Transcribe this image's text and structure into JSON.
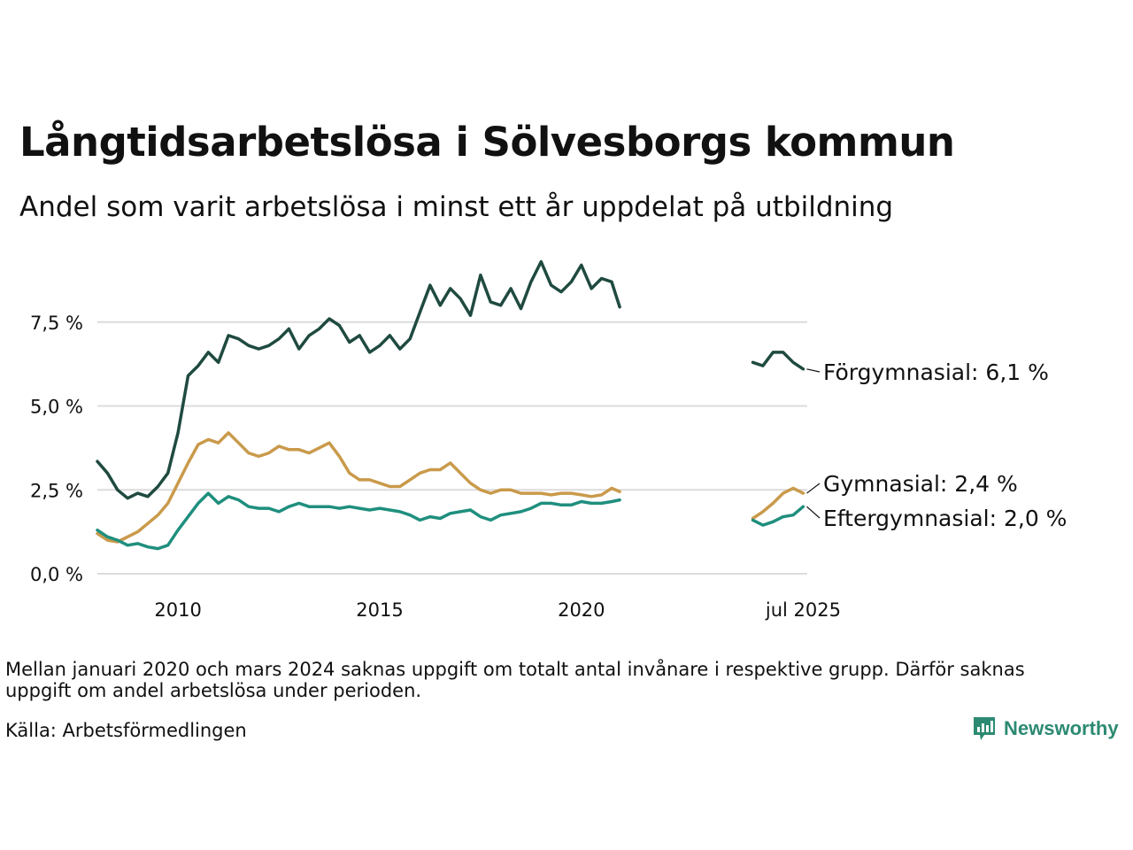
{
  "title": "Långtidsarbetslösa i Sölvesborgs kommun",
  "subtitle": "Andel som varit arbetslösa i minst ett år uppdelat på utbildning",
  "note": "Mellan januari 2020 och mars 2024 saknas uppgift om totalt antal invånare i respektive grupp. Därför saknas uppgift om andel arbetslösa under perioden.",
  "source": "Källa: Arbetsförmedlingen",
  "brand": {
    "name": "Newsworthy",
    "icon": "bar-chart-logo-icon",
    "color": "#2c8a72"
  },
  "chart_data": {
    "type": "line",
    "x_unit": "year",
    "xlim": [
      2008.0,
      2025.6
    ],
    "ylim": [
      0,
      9.5
    ],
    "y_ticks": [
      0,
      2.5,
      5,
      7.5
    ],
    "y_tick_labels": [
      "0,0 %",
      "2,5 %",
      "5,0 %",
      "7,5 %"
    ],
    "x_ticks": [
      2010,
      2015,
      2020,
      2025.5
    ],
    "x_tick_labels": [
      "2010",
      "2015",
      "2020",
      "jul 2025"
    ],
    "grid": "horizontal",
    "series": [
      {
        "name": "Förgymnasial",
        "label": "Förgymnasial: 6,1 %",
        "color": "#1f4a40",
        "segments": [
          [
            [
              2008.0,
              3.35
            ],
            [
              2008.25,
              3.0
            ],
            [
              2008.5,
              2.5
            ],
            [
              2008.75,
              2.25
            ],
            [
              2009.0,
              2.4
            ],
            [
              2009.25,
              2.3
            ],
            [
              2009.5,
              2.6
            ],
            [
              2009.75,
              3.0
            ],
            [
              2010.0,
              4.2
            ],
            [
              2010.25,
              5.9
            ],
            [
              2010.5,
              6.2
            ],
            [
              2010.75,
              6.6
            ],
            [
              2011.0,
              6.3
            ],
            [
              2011.25,
              7.1
            ],
            [
              2011.5,
              7.0
            ],
            [
              2011.75,
              6.8
            ],
            [
              2012.0,
              6.7
            ],
            [
              2012.25,
              6.8
            ],
            [
              2012.5,
              7.0
            ],
            [
              2012.75,
              7.3
            ],
            [
              2013.0,
              6.7
            ],
            [
              2013.25,
              7.1
            ],
            [
              2013.5,
              7.3
            ],
            [
              2013.75,
              7.6
            ],
            [
              2014.0,
              7.4
            ],
            [
              2014.25,
              6.9
            ],
            [
              2014.5,
              7.1
            ],
            [
              2014.75,
              6.6
            ],
            [
              2015.0,
              6.8
            ],
            [
              2015.25,
              7.1
            ],
            [
              2015.5,
              6.7
            ],
            [
              2015.75,
              7.0
            ],
            [
              2016.0,
              7.8
            ],
            [
              2016.25,
              8.6
            ],
            [
              2016.5,
              8.0
            ],
            [
              2016.75,
              8.5
            ],
            [
              2017.0,
              8.2
            ],
            [
              2017.25,
              7.7
            ],
            [
              2017.5,
              8.9
            ],
            [
              2017.75,
              8.1
            ],
            [
              2018.0,
              8.0
            ],
            [
              2018.25,
              8.5
            ],
            [
              2018.5,
              7.9
            ],
            [
              2018.75,
              8.7
            ],
            [
              2019.0,
              9.3
            ],
            [
              2019.25,
              8.6
            ],
            [
              2019.5,
              8.4
            ],
            [
              2019.75,
              8.7
            ],
            [
              2020.0,
              9.2
            ],
            [
              2020.25,
              8.5
            ],
            [
              2020.5,
              8.8
            ],
            [
              2020.75,
              8.7
            ],
            [
              2020.95,
              7.95
            ]
          ],
          [
            [
              2024.25,
              6.3
            ],
            [
              2024.5,
              6.2
            ],
            [
              2024.75,
              6.6
            ],
            [
              2025.0,
              6.6
            ],
            [
              2025.25,
              6.3
            ],
            [
              2025.5,
              6.1
            ]
          ]
        ]
      },
      {
        "name": "Gymnasial",
        "label": "Gymnasial: 2,4 %",
        "color": "#c99a4b",
        "segments": [
          [
            [
              2008.0,
              1.2
            ],
            [
              2008.25,
              1.0
            ],
            [
              2008.5,
              0.95
            ],
            [
              2008.75,
              1.1
            ],
            [
              2009.0,
              1.25
            ],
            [
              2009.25,
              1.5
            ],
            [
              2009.5,
              1.75
            ],
            [
              2009.75,
              2.1
            ],
            [
              2010.0,
              2.7
            ],
            [
              2010.25,
              3.3
            ],
            [
              2010.5,
              3.85
            ],
            [
              2010.75,
              4.0
            ],
            [
              2011.0,
              3.9
            ],
            [
              2011.25,
              4.2
            ],
            [
              2011.5,
              3.9
            ],
            [
              2011.75,
              3.6
            ],
            [
              2012.0,
              3.5
            ],
            [
              2012.25,
              3.6
            ],
            [
              2012.5,
              3.8
            ],
            [
              2012.75,
              3.7
            ],
            [
              2013.0,
              3.7
            ],
            [
              2013.25,
              3.6
            ],
            [
              2013.5,
              3.75
            ],
            [
              2013.75,
              3.9
            ],
            [
              2014.0,
              3.5
            ],
            [
              2014.25,
              3.0
            ],
            [
              2014.5,
              2.8
            ],
            [
              2014.75,
              2.8
            ],
            [
              2015.0,
              2.7
            ],
            [
              2015.25,
              2.6
            ],
            [
              2015.5,
              2.6
            ],
            [
              2015.75,
              2.8
            ],
            [
              2016.0,
              3.0
            ],
            [
              2016.25,
              3.1
            ],
            [
              2016.5,
              3.1
            ],
            [
              2016.75,
              3.3
            ],
            [
              2017.0,
              3.0
            ],
            [
              2017.25,
              2.7
            ],
            [
              2017.5,
              2.5
            ],
            [
              2017.75,
              2.4
            ],
            [
              2018.0,
              2.5
            ],
            [
              2018.25,
              2.5
            ],
            [
              2018.5,
              2.4
            ],
            [
              2018.75,
              2.4
            ],
            [
              2019.0,
              2.4
            ],
            [
              2019.25,
              2.35
            ],
            [
              2019.5,
              2.4
            ],
            [
              2019.75,
              2.4
            ],
            [
              2020.0,
              2.35
            ],
            [
              2020.25,
              2.3
            ],
            [
              2020.5,
              2.35
            ],
            [
              2020.75,
              2.55
            ],
            [
              2020.95,
              2.45
            ]
          ],
          [
            [
              2024.25,
              1.65
            ],
            [
              2024.5,
              1.85
            ],
            [
              2024.75,
              2.1
            ],
            [
              2025.0,
              2.4
            ],
            [
              2025.25,
              2.55
            ],
            [
              2025.5,
              2.4
            ]
          ]
        ]
      },
      {
        "name": "Eftergymnasial",
        "label": "Eftergymnasial: 2,0 %",
        "color": "#1f8f7e",
        "segments": [
          [
            [
              2008.0,
              1.3
            ],
            [
              2008.25,
              1.1
            ],
            [
              2008.5,
              1.0
            ],
            [
              2008.75,
              0.85
            ],
            [
              2009.0,
              0.9
            ],
            [
              2009.25,
              0.8
            ],
            [
              2009.5,
              0.75
            ],
            [
              2009.75,
              0.85
            ],
            [
              2010.0,
              1.3
            ],
            [
              2010.25,
              1.7
            ],
            [
              2010.5,
              2.1
            ],
            [
              2010.75,
              2.4
            ],
            [
              2011.0,
              2.1
            ],
            [
              2011.25,
              2.3
            ],
            [
              2011.5,
              2.2
            ],
            [
              2011.75,
              2.0
            ],
            [
              2012.0,
              1.95
            ],
            [
              2012.25,
              1.95
            ],
            [
              2012.5,
              1.85
            ],
            [
              2012.75,
              2.0
            ],
            [
              2013.0,
              2.1
            ],
            [
              2013.25,
              2.0
            ],
            [
              2013.5,
              2.0
            ],
            [
              2013.75,
              2.0
            ],
            [
              2014.0,
              1.95
            ],
            [
              2014.25,
              2.0
            ],
            [
              2014.5,
              1.95
            ],
            [
              2014.75,
              1.9
            ],
            [
              2015.0,
              1.95
            ],
            [
              2015.25,
              1.9
            ],
            [
              2015.5,
              1.85
            ],
            [
              2015.75,
              1.75
            ],
            [
              2016.0,
              1.6
            ],
            [
              2016.25,
              1.7
            ],
            [
              2016.5,
              1.65
            ],
            [
              2016.75,
              1.8
            ],
            [
              2017.0,
              1.85
            ],
            [
              2017.25,
              1.9
            ],
            [
              2017.5,
              1.7
            ],
            [
              2017.75,
              1.6
            ],
            [
              2018.0,
              1.75
            ],
            [
              2018.25,
              1.8
            ],
            [
              2018.5,
              1.85
            ],
            [
              2018.75,
              1.95
            ],
            [
              2019.0,
              2.1
            ],
            [
              2019.25,
              2.1
            ],
            [
              2019.5,
              2.05
            ],
            [
              2019.75,
              2.05
            ],
            [
              2020.0,
              2.15
            ],
            [
              2020.25,
              2.1
            ],
            [
              2020.5,
              2.1
            ],
            [
              2020.75,
              2.15
            ],
            [
              2020.95,
              2.2
            ]
          ],
          [
            [
              2024.25,
              1.6
            ],
            [
              2024.5,
              1.45
            ],
            [
              2024.75,
              1.55
            ],
            [
              2025.0,
              1.7
            ],
            [
              2025.25,
              1.75
            ],
            [
              2025.5,
              2.0
            ]
          ]
        ]
      }
    ]
  }
}
